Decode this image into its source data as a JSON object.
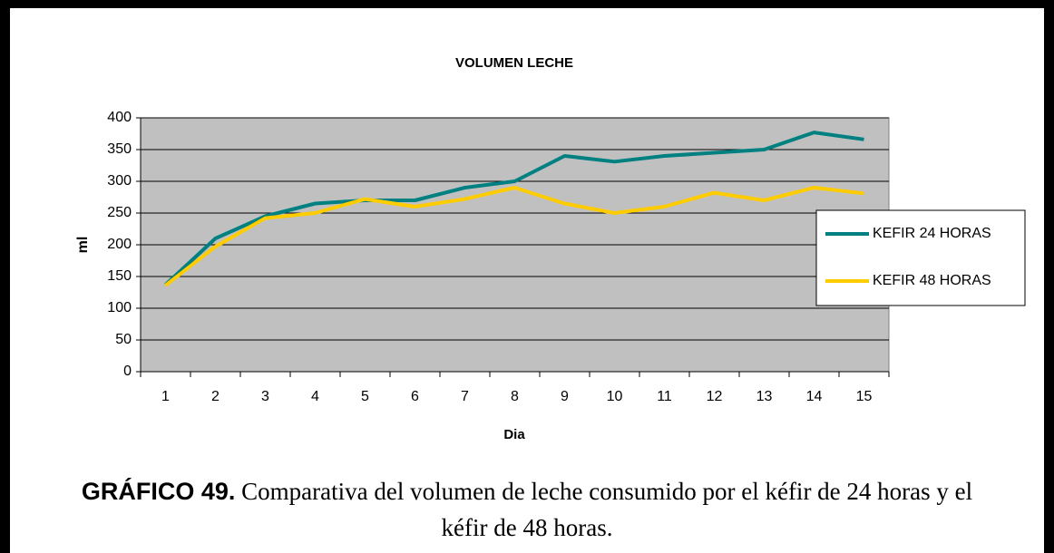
{
  "chart_data": {
    "type": "line",
    "title": "VOLUMEN LECHE",
    "x_label": "Dia",
    "y_label": "ml",
    "categories": [
      "1",
      "2",
      "3",
      "4",
      "5",
      "6",
      "7",
      "8",
      "9",
      "10",
      "11",
      "12",
      "13",
      "14",
      "15"
    ],
    "series": [
      {
        "name": "KEFIR 24 HORAS",
        "color": "#008080",
        "values": [
          137,
          210,
          245,
          265,
          270,
          270,
          290,
          300,
          340,
          331,
          340,
          345,
          350,
          377,
          366
        ]
      },
      {
        "name": "KEFIR 48 HORAS",
        "color": "#ffcc00",
        "values": [
          136,
          197,
          242,
          250,
          272,
          260,
          272,
          290,
          265,
          250,
          260,
          282,
          270,
          290,
          281
        ]
      }
    ],
    "ylim": [
      0,
      400
    ],
    "yticks": [
      0,
      50,
      100,
      150,
      200,
      250,
      300,
      350,
      400
    ],
    "grid": true,
    "legend": "right"
  },
  "caption": {
    "label": "GRÁFICO 49.",
    "text": " Comparativa del volumen de leche consumido por el kéfir de 24 horas y el kéfir de 48 horas."
  }
}
